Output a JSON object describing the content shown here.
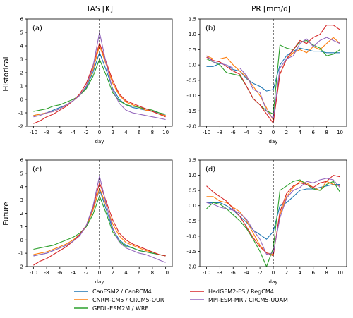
{
  "column_titles": [
    "TAS [K]",
    "PR [mm/d]"
  ],
  "row_titles": [
    "Historical",
    "Future"
  ],
  "xlabel": "day",
  "legend": [
    {
      "name": "CanESM2 / CanRCM4",
      "color": "#1f77b4"
    },
    {
      "name": "CNRM-CM5 / CRCM5-OUR",
      "color": "#ff7f0e"
    },
    {
      "name": "GFDL-ESM2M / WRF",
      "color": "#2ca02c"
    },
    {
      "name": "HadGEM2-ES / RegCM4",
      "color": "#d62728"
    },
    {
      "name": "MPI-ESM-MR / CRCM5-UQAM",
      "color": "#9467bd"
    }
  ],
  "chart_data": [
    {
      "type": "line",
      "panel_label": "(a)",
      "xlabel": "day",
      "xlim": [
        -11,
        11
      ],
      "ylim": [
        -2,
        6
      ],
      "xticks": [
        -10,
        -8,
        -6,
        -4,
        -2,
        0,
        2,
        4,
        6,
        8,
        10
      ],
      "yticks": [
        -2,
        -1,
        0,
        1,
        2,
        3,
        4,
        5,
        6
      ],
      "event_line_x": 0,
      "x": [
        -10,
        -9,
        -8,
        -7,
        -6,
        -5,
        -4,
        -3,
        -2,
        -1,
        0,
        1,
        2,
        3,
        4,
        5,
        6,
        7,
        8,
        9,
        10
      ],
      "series": [
        {
          "name": "CanESM2 / CanRCM4",
          "color": "#1f77b4",
          "values": [
            -1.2,
            -1.1,
            -1.0,
            -0.8,
            -0.6,
            -0.4,
            -0.1,
            0.3,
            0.9,
            2.0,
            3.5,
            2.2,
            0.8,
            0.0,
            -0.4,
            -0.6,
            -0.7,
            -0.8,
            -0.9,
            -1.0,
            -1.2
          ]
        },
        {
          "name": "CNRM-CM5 / CRCM5-OUR",
          "color": "#ff7f0e",
          "values": [
            -1.2,
            -1.1,
            -1.0,
            -0.9,
            -0.7,
            -0.4,
            -0.1,
            0.3,
            1.0,
            2.2,
            4.0,
            2.6,
            1.2,
            0.3,
            -0.2,
            -0.4,
            -0.6,
            -0.8,
            -0.9,
            -1.1,
            -1.2
          ]
        },
        {
          "name": "GFDL-ESM2M / WRF",
          "color": "#2ca02c",
          "values": [
            -0.9,
            -0.8,
            -0.7,
            -0.5,
            -0.4,
            -0.2,
            0.0,
            0.3,
            0.8,
            1.7,
            3.0,
            1.8,
            0.5,
            -0.1,
            -0.4,
            -0.5,
            -0.6,
            -0.7,
            -0.8,
            -1.0,
            -1.1
          ]
        },
        {
          "name": "HadGEM2-ES / RegCM4",
          "color": "#d62728",
          "values": [
            -1.8,
            -1.6,
            -1.3,
            -1.1,
            -0.8,
            -0.5,
            -0.1,
            0.4,
            1.2,
            2.5,
            4.2,
            2.8,
            1.4,
            0.4,
            -0.1,
            -0.3,
            -0.5,
            -0.7,
            -0.9,
            -1.1,
            -1.3
          ]
        },
        {
          "name": "MPI-ESM-MR / CRCM5-UQAM",
          "color": "#9467bd",
          "values": [
            -1.3,
            -1.2,
            -1.0,
            -0.9,
            -0.7,
            -0.4,
            -0.1,
            0.3,
            1.0,
            2.4,
            5.0,
            2.7,
            0.7,
            -0.3,
            -0.8,
            -1.0,
            -1.1,
            -1.2,
            -1.3,
            -1.4,
            -1.5
          ]
        }
      ]
    },
    {
      "type": "line",
      "panel_label": "(b)",
      "xlabel": "day",
      "xlim": [
        -11,
        11
      ],
      "ylim": [
        -2,
        1.5
      ],
      "xticks": [
        -10,
        -8,
        -6,
        -4,
        -2,
        0,
        2,
        4,
        6,
        8,
        10
      ],
      "yticks": [
        -2.0,
        -1.5,
        -1.0,
        -0.5,
        0.0,
        0.5,
        1.0,
        1.5
      ],
      "yticklabels": [
        "-2.0",
        "-1.5",
        "-1.0",
        "-0.5",
        "0.0",
        "0.5",
        "1.0",
        "1.5"
      ],
      "event_line_x": 0,
      "x": [
        -10,
        -9,
        -8,
        -7,
        -6,
        -5,
        -4,
        -3,
        -2,
        -1,
        0,
        1,
        2,
        3,
        4,
        5,
        6,
        7,
        8,
        9,
        10
      ],
      "series": [
        {
          "name": "CanESM2 / CanRCM4",
          "color": "#1f77b4",
          "values": [
            -0.05,
            -0.05,
            0.05,
            0.0,
            -0.15,
            -0.2,
            -0.45,
            -0.6,
            -0.7,
            -0.85,
            -0.8,
            0.0,
            0.3,
            0.45,
            0.55,
            0.5,
            0.45,
            0.45,
            0.4,
            0.4,
            0.4
          ]
        },
        {
          "name": "CNRM-CM5 / CRCM5-OUR",
          "color": "#ff7f0e",
          "values": [
            0.3,
            0.2,
            0.2,
            0.25,
            0.0,
            -0.2,
            -0.4,
            -0.7,
            -1.0,
            -1.4,
            -1.8,
            -0.3,
            0.2,
            0.4,
            0.5,
            0.4,
            0.6,
            0.5,
            0.7,
            0.9,
            0.7
          ]
        },
        {
          "name": "GFDL-ESM2M / WRF",
          "color": "#2ca02c",
          "values": [
            0.2,
            0.1,
            0.0,
            -0.25,
            -0.3,
            -0.35,
            -0.7,
            -1.1,
            -1.3,
            -1.5,
            -1.6,
            0.65,
            0.55,
            0.5,
            0.75,
            0.8,
            0.65,
            0.55,
            0.3,
            0.35,
            0.5
          ]
        },
        {
          "name": "HadGEM2-ES / RegCM4",
          "color": "#d62728",
          "values": [
            0.25,
            0.15,
            0.1,
            -0.05,
            -0.2,
            -0.3,
            -0.7,
            -1.1,
            -1.3,
            -1.6,
            -1.9,
            -0.3,
            0.2,
            0.5,
            0.8,
            0.7,
            0.9,
            1.0,
            1.3,
            1.3,
            1.15
          ]
        },
        {
          "name": "MPI-ESM-MR / CRCM5-UQAM",
          "color": "#9467bd",
          "values": [
            0.3,
            0.1,
            0.05,
            0.0,
            -0.1,
            -0.1,
            -0.35,
            -0.8,
            -0.9,
            -1.5,
            -1.75,
            -0.1,
            0.2,
            0.3,
            0.7,
            0.85,
            0.6,
            0.8,
            0.9,
            0.8,
            0.7
          ]
        }
      ]
    },
    {
      "type": "line",
      "panel_label": "(c)",
      "xlabel": "day",
      "xlim": [
        -11,
        11
      ],
      "ylim": [
        -2,
        6
      ],
      "xticks": [
        -10,
        -8,
        -6,
        -4,
        -2,
        0,
        2,
        4,
        6,
        8,
        10
      ],
      "yticks": [
        -2,
        -1,
        0,
        1,
        2,
        3,
        4,
        5,
        6
      ],
      "event_line_x": 0,
      "x": [
        -10,
        -9,
        -8,
        -7,
        -6,
        -5,
        -4,
        -3,
        -2,
        -1,
        0,
        1,
        2,
        3,
        4,
        5,
        6,
        7,
        8,
        9,
        10
      ],
      "series": [
        {
          "name": "CanESM2 / CanRCM4",
          "color": "#1f77b4",
          "values": [
            -1.2,
            -1.1,
            -1.0,
            -0.8,
            -0.6,
            -0.4,
            -0.1,
            0.4,
            1.0,
            2.2,
            3.8,
            2.3,
            0.8,
            0.0,
            -0.4,
            -0.6,
            -0.8,
            -0.9,
            -1.0,
            -1.1,
            -1.2
          ]
        },
        {
          "name": "CNRM-CM5 / CRCM5-OUR",
          "color": "#ff7f0e",
          "values": [
            -1.1,
            -1.0,
            -0.9,
            -0.7,
            -0.5,
            -0.3,
            0.0,
            0.4,
            1.0,
            2.2,
            3.9,
            2.6,
            1.2,
            0.3,
            -0.2,
            -0.4,
            -0.6,
            -0.8,
            -0.9,
            -1.1,
            -1.2
          ]
        },
        {
          "name": "GFDL-ESM2M / WRF",
          "color": "#2ca02c",
          "values": [
            -0.7,
            -0.6,
            -0.5,
            -0.4,
            -0.2,
            0.0,
            0.2,
            0.5,
            1.0,
            1.9,
            3.3,
            2.0,
            0.6,
            -0.1,
            -0.5,
            -0.6,
            -0.8,
            -0.9,
            -1.0,
            -1.1,
            -1.2
          ]
        },
        {
          "name": "HadGEM2-ES / RegCM4",
          "color": "#d62728",
          "values": [
            -1.9,
            -1.6,
            -1.4,
            -1.1,
            -0.8,
            -0.5,
            -0.1,
            0.4,
            1.1,
            2.4,
            4.3,
            2.9,
            1.5,
            0.5,
            0.0,
            -0.3,
            -0.5,
            -0.7,
            -0.9,
            -1.1,
            -1.2
          ]
        },
        {
          "name": "MPI-ESM-MR / CRCM5-UQAM",
          "color": "#9467bd",
          "values": [
            -1.2,
            -1.1,
            -1.0,
            -0.8,
            -0.6,
            -0.4,
            -0.1,
            0.3,
            1.1,
            2.5,
            4.8,
            2.7,
            0.9,
            -0.2,
            -0.6,
            -0.8,
            -1.0,
            -1.1,
            -1.3,
            -1.5,
            -1.7
          ]
        }
      ]
    },
    {
      "type": "line",
      "panel_label": "(d)",
      "xlabel": "day",
      "xlim": [
        -11,
        11
      ],
      "ylim": [
        -2,
        1.5
      ],
      "xticks": [
        -10,
        -8,
        -6,
        -4,
        -2,
        0,
        2,
        4,
        6,
        8,
        10
      ],
      "yticks": [
        -2.0,
        -1.5,
        -1.0,
        -0.5,
        0.0,
        0.5,
        1.0,
        1.5
      ],
      "yticklabels": [
        "-2.0",
        "-1.5",
        "-1.0",
        "-0.5",
        "0.0",
        "0.5",
        "1.0",
        "1.5"
      ],
      "event_line_x": 0,
      "x": [
        -10,
        -9,
        -8,
        -7,
        -6,
        -5,
        -4,
        -3,
        -2,
        -1,
        0,
        1,
        2,
        3,
        4,
        5,
        6,
        7,
        8,
        9,
        10
      ],
      "series": [
        {
          "name": "CanESM2 / CanRCM4",
          "color": "#1f77b4",
          "values": [
            0.1,
            0.1,
            0.1,
            0.0,
            -0.15,
            -0.35,
            -0.55,
            -0.8,
            -0.95,
            -1.1,
            -0.85,
            0.0,
            0.1,
            0.3,
            0.5,
            0.55,
            0.55,
            0.6,
            0.65,
            0.7,
            0.7
          ]
        },
        {
          "name": "CNRM-CM5 / CRCM5-OUR",
          "color": "#ff7f0e",
          "values": [
            0.3,
            0.3,
            0.15,
            0.1,
            -0.05,
            -0.2,
            -0.5,
            -0.9,
            -1.3,
            -1.55,
            -1.6,
            -0.3,
            0.3,
            0.6,
            0.8,
            0.75,
            0.6,
            0.5,
            0.8,
            0.7,
            0.65
          ]
        },
        {
          "name": "GFDL-ESM2M / WRF",
          "color": "#2ca02c",
          "values": [
            -0.1,
            0.1,
            0.05,
            -0.1,
            -0.3,
            -0.5,
            -0.75,
            -1.1,
            -1.5,
            -2.0,
            -1.4,
            0.5,
            0.65,
            0.8,
            0.85,
            0.7,
            0.55,
            0.5,
            0.7,
            0.8,
            0.45
          ]
        },
        {
          "name": "HadGEM2-ES / RegCM4",
          "color": "#d62728",
          "values": [
            0.65,
            0.45,
            0.3,
            0.15,
            -0.1,
            -0.35,
            -0.7,
            -1.05,
            -1.35,
            -1.55,
            -1.65,
            -0.2,
            0.4,
            0.65,
            0.75,
            0.7,
            0.6,
            0.75,
            0.8,
            1.0,
            0.95
          ]
        },
        {
          "name": "MPI-ESM-MR / CRCM5-UQAM",
          "color": "#9467bd",
          "values": [
            0.1,
            0.05,
            -0.05,
            -0.1,
            -0.15,
            -0.25,
            -0.45,
            -0.8,
            -1.1,
            -1.6,
            -1.55,
            -0.4,
            0.25,
            0.5,
            0.6,
            0.8,
            0.75,
            0.85,
            0.9,
            0.85,
            0.6
          ]
        }
      ]
    }
  ]
}
